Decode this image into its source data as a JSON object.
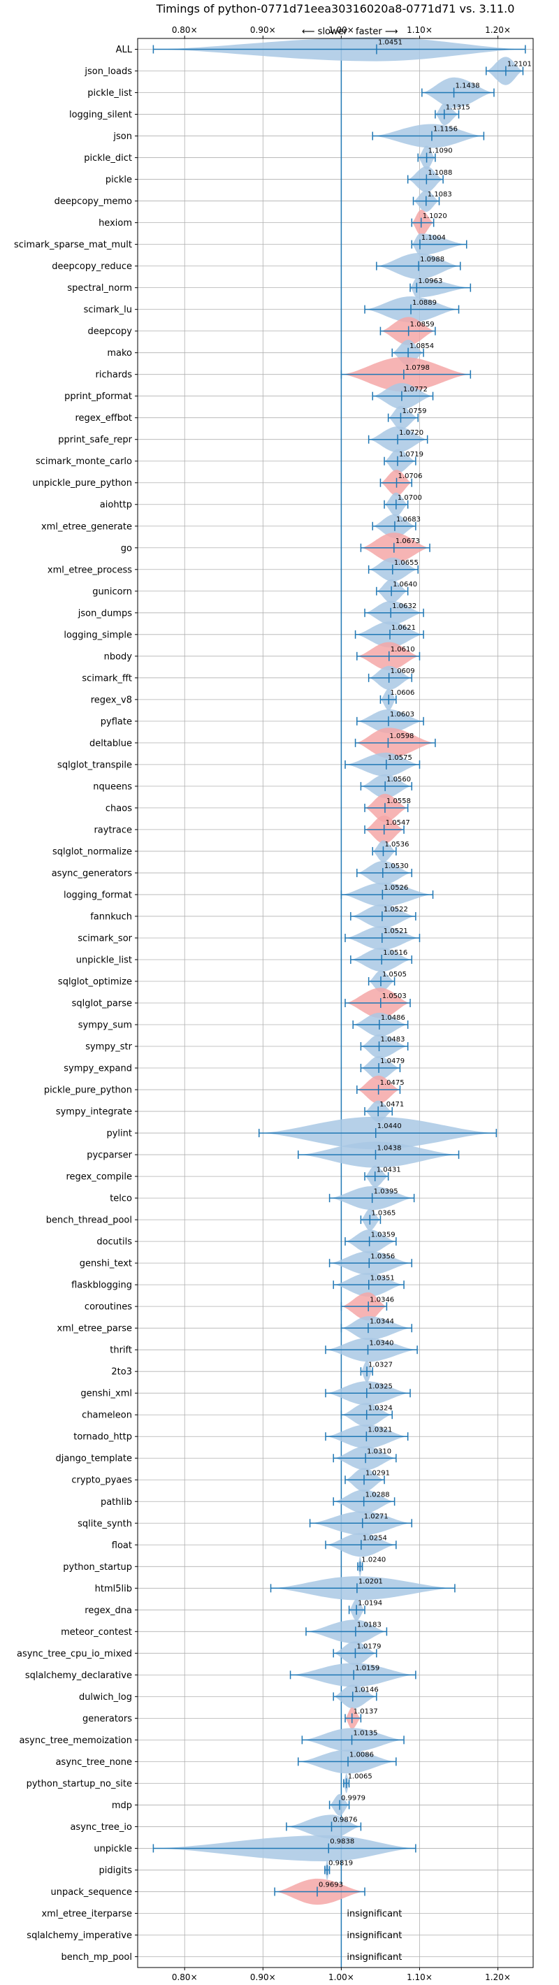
{
  "chart_data": {
    "type": "violin",
    "title": "Timings of python-0771d71eea30316020a8-0771d71 vs. 3.11.0",
    "direction_slower": "⟵ slower",
    "direction_faster": "faster ⟶",
    "xlim": [
      0.74,
      1.245
    ],
    "xticks": [
      0.8,
      0.9,
      1.0,
      1.1,
      1.2
    ],
    "xtick_labels": [
      "0.80×",
      "0.90×",
      "1.00×",
      "1.10×",
      "1.20×"
    ],
    "grid": true,
    "colors": {
      "faster": "#a9c8e4",
      "slower": "#f4a7a7",
      "line": "#1f77b4",
      "grid": "#b0b0b0"
    },
    "insignificant_label": "insignificant",
    "benchmarks": [
      {
        "name": "ALL",
        "value": 1.0451,
        "lo": 0.76,
        "hi": 1.235,
        "w": 0.55
      },
      {
        "name": "json_loads",
        "value": 1.2101,
        "lo": 1.185,
        "hi": 1.232,
        "w": 0.65
      },
      {
        "name": "pickle_list",
        "value": 1.1438,
        "lo": 1.103,
        "hi": 1.195,
        "w": 0.7
      },
      {
        "name": "logging_silent",
        "value": 1.1315,
        "lo": 1.12,
        "hi": 1.15,
        "w": 0.5
      },
      {
        "name": "json",
        "value": 1.1156,
        "lo": 1.04,
        "hi": 1.182,
        "w": 0.55
      },
      {
        "name": "pickle_dict",
        "value": 1.109,
        "lo": 1.098,
        "hi": 1.12,
        "w": 0.55
      },
      {
        "name": "pickle",
        "value": 1.1088,
        "lo": 1.085,
        "hi": 1.13,
        "w": 0.6
      },
      {
        "name": "deepcopy_memo",
        "value": 1.1083,
        "lo": 1.092,
        "hi": 1.125,
        "w": 0.5
      },
      {
        "name": "hexiom",
        "value": 1.102,
        "lo": 1.09,
        "hi": 1.118,
        "w": 0.6,
        "slower": true
      },
      {
        "name": "scimark_sparse_mat_mult",
        "value": 1.1004,
        "lo": 1.09,
        "hi": 1.16,
        "w": 0.5
      },
      {
        "name": "deepcopy_reduce",
        "value": 1.0988,
        "lo": 1.045,
        "hi": 1.152,
        "w": 0.6
      },
      {
        "name": "spectral_norm",
        "value": 1.0963,
        "lo": 1.088,
        "hi": 1.165,
        "w": 0.45
      },
      {
        "name": "scimark_lu",
        "value": 1.0889,
        "lo": 1.03,
        "hi": 1.15,
        "w": 0.6
      },
      {
        "name": "deepcopy",
        "value": 1.0859,
        "lo": 1.05,
        "hi": 1.12,
        "w": 0.65,
        "slower": true
      },
      {
        "name": "mako",
        "value": 1.0854,
        "lo": 1.065,
        "hi": 1.105,
        "w": 0.6
      },
      {
        "name": "richards",
        "value": 1.0798,
        "lo": 1.0,
        "hi": 1.165,
        "w": 0.8,
        "slower": true
      },
      {
        "name": "pprint_pformat",
        "value": 1.0772,
        "lo": 1.04,
        "hi": 1.117,
        "w": 0.6
      },
      {
        "name": "regex_effbot",
        "value": 1.0759,
        "lo": 1.06,
        "hi": 1.098,
        "w": 0.55
      },
      {
        "name": "pprint_safe_repr",
        "value": 1.072,
        "lo": 1.035,
        "hi": 1.11,
        "w": 0.6
      },
      {
        "name": "scimark_monte_carlo",
        "value": 1.0719,
        "lo": 1.055,
        "hi": 1.095,
        "w": 0.55
      },
      {
        "name": "unpickle_pure_python",
        "value": 1.0706,
        "lo": 1.05,
        "hi": 1.09,
        "w": 0.6,
        "slower": true
      },
      {
        "name": "aiohttp",
        "value": 1.07,
        "lo": 1.055,
        "hi": 1.085,
        "w": 0.55
      },
      {
        "name": "xml_etree_generate",
        "value": 1.0683,
        "lo": 1.04,
        "hi": 1.095,
        "w": 0.55
      },
      {
        "name": "go",
        "value": 1.0673,
        "lo": 1.025,
        "hi": 1.113,
        "w": 0.7,
        "slower": true
      },
      {
        "name": "xml_etree_process",
        "value": 1.0655,
        "lo": 1.035,
        "hi": 1.098,
        "w": 0.55
      },
      {
        "name": "gunicorn",
        "value": 1.064,
        "lo": 1.045,
        "hi": 1.085,
        "w": 0.55
      },
      {
        "name": "json_dumps",
        "value": 1.0632,
        "lo": 1.03,
        "hi": 1.105,
        "w": 0.55
      },
      {
        "name": "logging_simple",
        "value": 1.0621,
        "lo": 1.018,
        "hi": 1.105,
        "w": 0.6
      },
      {
        "name": "nbody",
        "value": 1.061,
        "lo": 1.02,
        "hi": 1.1,
        "w": 0.65,
        "slower": true
      },
      {
        "name": "scimark_fft",
        "value": 1.0609,
        "lo": 1.035,
        "hi": 1.09,
        "w": 0.55
      },
      {
        "name": "regex_v8",
        "value": 1.0606,
        "lo": 1.05,
        "hi": 1.07,
        "w": 0.5
      },
      {
        "name": "pyflate",
        "value": 1.0603,
        "lo": 1.02,
        "hi": 1.105,
        "w": 0.55
      },
      {
        "name": "deltablue",
        "value": 1.0598,
        "lo": 1.018,
        "hi": 1.12,
        "w": 0.7,
        "slower": true
      },
      {
        "name": "sqlglot_transpile",
        "value": 1.0575,
        "lo": 1.005,
        "hi": 1.1,
        "w": 0.55
      },
      {
        "name": "nqueens",
        "value": 1.056,
        "lo": 1.025,
        "hi": 1.09,
        "w": 0.55
      },
      {
        "name": "chaos",
        "value": 1.0558,
        "lo": 1.03,
        "hi": 1.085,
        "w": 0.65,
        "slower": true
      },
      {
        "name": "raytrace",
        "value": 1.0547,
        "lo": 1.03,
        "hi": 1.08,
        "w": 0.65,
        "slower": true
      },
      {
        "name": "sqlglot_normalize",
        "value": 1.0536,
        "lo": 1.04,
        "hi": 1.07,
        "w": 0.5
      },
      {
        "name": "async_generators",
        "value": 1.053,
        "lo": 1.02,
        "hi": 1.09,
        "w": 0.55
      },
      {
        "name": "logging_format",
        "value": 1.0526,
        "lo": 1.0,
        "hi": 1.117,
        "w": 0.55
      },
      {
        "name": "fannkuch",
        "value": 1.0522,
        "lo": 1.012,
        "hi": 1.095,
        "w": 0.55
      },
      {
        "name": "scimark_sor",
        "value": 1.0521,
        "lo": 1.005,
        "hi": 1.1,
        "w": 0.55
      },
      {
        "name": "unpickle_list",
        "value": 1.0516,
        "lo": 1.012,
        "hi": 1.09,
        "w": 0.55
      },
      {
        "name": "sqlglot_optimize",
        "value": 1.0505,
        "lo": 1.035,
        "hi": 1.068,
        "w": 0.5
      },
      {
        "name": "sqlglot_parse",
        "value": 1.0503,
        "lo": 1.005,
        "hi": 1.088,
        "w": 0.7,
        "slower": true
      },
      {
        "name": "sympy_sum",
        "value": 1.0486,
        "lo": 1.015,
        "hi": 1.085,
        "w": 0.55
      },
      {
        "name": "sympy_str",
        "value": 1.0483,
        "lo": 1.025,
        "hi": 1.085,
        "w": 0.55
      },
      {
        "name": "sympy_expand",
        "value": 1.0479,
        "lo": 1.025,
        "hi": 1.075,
        "w": 0.55
      },
      {
        "name": "pickle_pure_python",
        "value": 1.0475,
        "lo": 1.02,
        "hi": 1.075,
        "w": 0.65,
        "slower": true
      },
      {
        "name": "sympy_integrate",
        "value": 1.0471,
        "lo": 1.03,
        "hi": 1.065,
        "w": 0.5
      },
      {
        "name": "pylint",
        "value": 1.044,
        "lo": 0.895,
        "hi": 1.198,
        "w": 0.75
      },
      {
        "name": "pycparser",
        "value": 1.0438,
        "lo": 0.945,
        "hi": 1.15,
        "w": 0.6
      },
      {
        "name": "regex_compile",
        "value": 1.0431,
        "lo": 1.03,
        "hi": 1.06,
        "w": 0.5
      },
      {
        "name": "telco",
        "value": 1.0395,
        "lo": 0.985,
        "hi": 1.093,
        "w": 0.55
      },
      {
        "name": "bench_thread_pool",
        "value": 1.0365,
        "lo": 1.025,
        "hi": 1.05,
        "w": 0.5
      },
      {
        "name": "docutils",
        "value": 1.0359,
        "lo": 1.005,
        "hi": 1.07,
        "w": 0.55
      },
      {
        "name": "genshi_text",
        "value": 1.0356,
        "lo": 0.985,
        "hi": 1.09,
        "w": 0.55
      },
      {
        "name": "flaskblogging",
        "value": 1.0351,
        "lo": 0.99,
        "hi": 1.08,
        "w": 0.55
      },
      {
        "name": "coroutines",
        "value": 1.0346,
        "lo": 1.0,
        "hi": 1.058,
        "w": 0.65,
        "slower": true
      },
      {
        "name": "xml_etree_parse",
        "value": 1.0344,
        "lo": 1.0,
        "hi": 1.09,
        "w": 0.55
      },
      {
        "name": "thrift",
        "value": 1.034,
        "lo": 0.98,
        "hi": 1.097,
        "w": 0.55
      },
      {
        "name": "2to3",
        "value": 1.0327,
        "lo": 1.025,
        "hi": 1.04,
        "w": 0.5
      },
      {
        "name": "genshi_xml",
        "value": 1.0325,
        "lo": 0.98,
        "hi": 1.088,
        "w": 0.55
      },
      {
        "name": "chameleon",
        "value": 1.0324,
        "lo": 1.0,
        "hi": 1.065,
        "w": 0.55
      },
      {
        "name": "tornado_http",
        "value": 1.0321,
        "lo": 0.98,
        "hi": 1.085,
        "w": 0.55
      },
      {
        "name": "django_template",
        "value": 1.031,
        "lo": 0.99,
        "hi": 1.07,
        "w": 0.55
      },
      {
        "name": "crypto_pyaes",
        "value": 1.0291,
        "lo": 1.005,
        "hi": 1.055,
        "w": 0.55
      },
      {
        "name": "pathlib",
        "value": 1.0288,
        "lo": 0.99,
        "hi": 1.068,
        "w": 0.55
      },
      {
        "name": "sqlite_synth",
        "value": 1.0271,
        "lo": 0.96,
        "hi": 1.09,
        "w": 0.55
      },
      {
        "name": "float",
        "value": 1.0254,
        "lo": 0.98,
        "hi": 1.07,
        "w": 0.55
      },
      {
        "name": "python_startup",
        "value": 1.024,
        "lo": 1.021,
        "hi": 1.027,
        "w": 0.45
      },
      {
        "name": "html5lib",
        "value": 1.0201,
        "lo": 0.91,
        "hi": 1.145,
        "w": 0.55
      },
      {
        "name": "regex_dna",
        "value": 1.0194,
        "lo": 1.01,
        "hi": 1.03,
        "w": 0.5
      },
      {
        "name": "meteor_contest",
        "value": 1.0183,
        "lo": 0.955,
        "hi": 1.058,
        "w": 0.55
      },
      {
        "name": "async_tree_cpu_io_mixed",
        "value": 1.0179,
        "lo": 0.99,
        "hi": 1.045,
        "w": 0.55
      },
      {
        "name": "sqlalchemy_declarative",
        "value": 1.0159,
        "lo": 0.935,
        "hi": 1.095,
        "w": 0.55
      },
      {
        "name": "dulwich_log",
        "value": 1.0146,
        "lo": 0.99,
        "hi": 1.045,
        "w": 0.55
      },
      {
        "name": "generators",
        "value": 1.0137,
        "lo": 1.005,
        "hi": 1.025,
        "w": 0.5,
        "slower": true
      },
      {
        "name": "async_tree_memoization",
        "value": 1.0135,
        "lo": 0.95,
        "hi": 1.08,
        "w": 0.55
      },
      {
        "name": "async_tree_none",
        "value": 1.0086,
        "lo": 0.945,
        "hi": 1.07,
        "w": 0.55
      },
      {
        "name": "python_startup_no_site",
        "value": 1.0065,
        "lo": 1.003,
        "hi": 1.01,
        "w": 0.45
      },
      {
        "name": "mdp",
        "value": 0.9979,
        "lo": 0.985,
        "hi": 1.01,
        "w": 0.5
      },
      {
        "name": "async_tree_io",
        "value": 0.9876,
        "lo": 0.93,
        "hi": 1.025,
        "w": 0.55
      },
      {
        "name": "unpickle",
        "value": 0.9838,
        "lo": 0.76,
        "hi": 1.095,
        "w": 0.6
      },
      {
        "name": "pidigits",
        "value": 0.9819,
        "lo": 0.979,
        "hi": 0.985,
        "w": 0.45
      },
      {
        "name": "unpack_sequence",
        "value": 0.9693,
        "lo": 0.915,
        "hi": 1.03,
        "w": 0.6,
        "slower": true
      },
      {
        "name": "xml_etree_iterparse",
        "insignificant": true
      },
      {
        "name": "sqlalchemy_imperative",
        "insignificant": true
      },
      {
        "name": "bench_mp_pool",
        "insignificant": true
      }
    ]
  }
}
